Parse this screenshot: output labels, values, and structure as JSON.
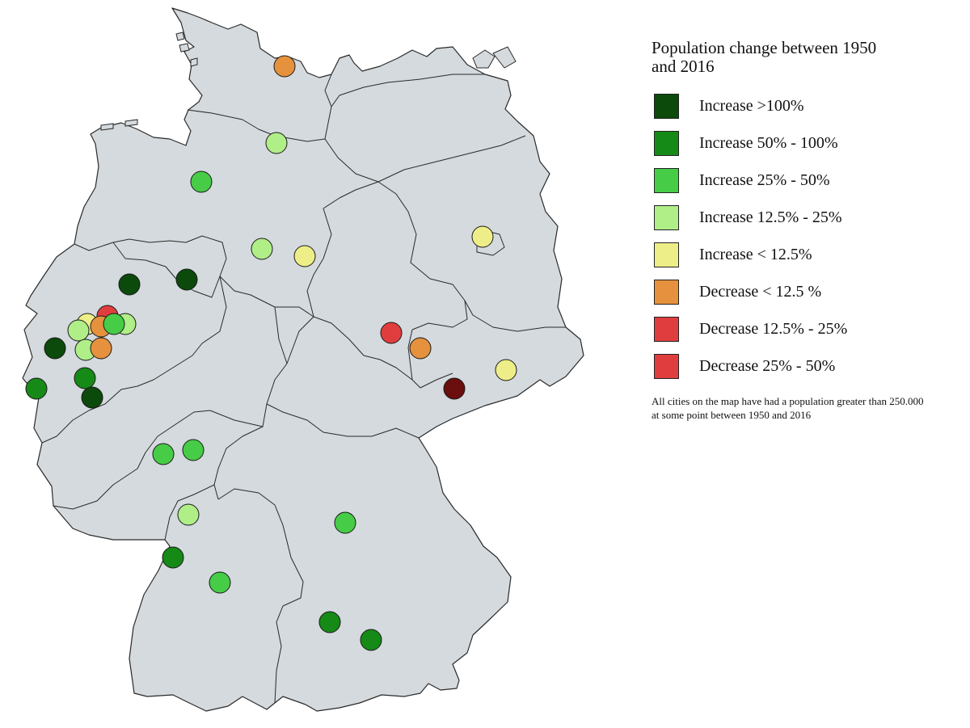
{
  "map": {
    "land_fill": "#d4dadd",
    "border_color": "#2a2a2a",
    "marker_stroke": "#1a1a1a"
  },
  "legend": {
    "title": "Population change between 1950 and 2016",
    "items": [
      {
        "label": "Increase >100%",
        "color": "#0b4a0b"
      },
      {
        "label": "Increase 50% - 100%",
        "color": "#168a16"
      },
      {
        "label": "Increase 25% - 50%",
        "color": "#47cc47"
      },
      {
        "label": "Increase 12.5% - 25%",
        "color": "#b0ee88"
      },
      {
        "label": "Increase < 12.5%",
        "color": "#eeee88"
      },
      {
        "label": "Decrease < 12.5 %",
        "color": "#e5913d"
      },
      {
        "label": "Decrease 12.5% - 25%",
        "color": "#e03e3e"
      },
      {
        "label": "Decrease 25% - 50%",
        "color": "#e03e3e"
      }
    ],
    "note": "All cities on the map have had a population greater than 250.000 at some point between 1950 and 2016"
  },
  "cities": [
    {
      "category": 5
    },
    {
      "category": 3
    },
    {
      "category": 2
    },
    {
      "category": 3
    },
    {
      "category": 4
    },
    {
      "category": 4
    },
    {
      "category": 0
    },
    {
      "category": 0
    },
    {
      "category": 6
    },
    {
      "category": 4
    },
    {
      "category": 3
    },
    {
      "category": 3
    },
    {
      "category": 5
    },
    {
      "category": 2
    },
    {
      "category": 0
    },
    {
      "category": 3
    },
    {
      "category": 5
    },
    {
      "category": 1
    },
    {
      "category": 1
    },
    {
      "category": 0
    },
    {
      "category": 6
    },
    {
      "category": 5
    },
    {
      "category": 4
    },
    {
      "category": 7
    },
    {
      "category": 2
    },
    {
      "category": 2
    },
    {
      "category": 3
    },
    {
      "category": 2
    },
    {
      "category": 1
    },
    {
      "category": 2
    },
    {
      "category": 1
    },
    {
      "category": 1
    }
  ],
  "dark_red_color": "#6a0e0e"
}
